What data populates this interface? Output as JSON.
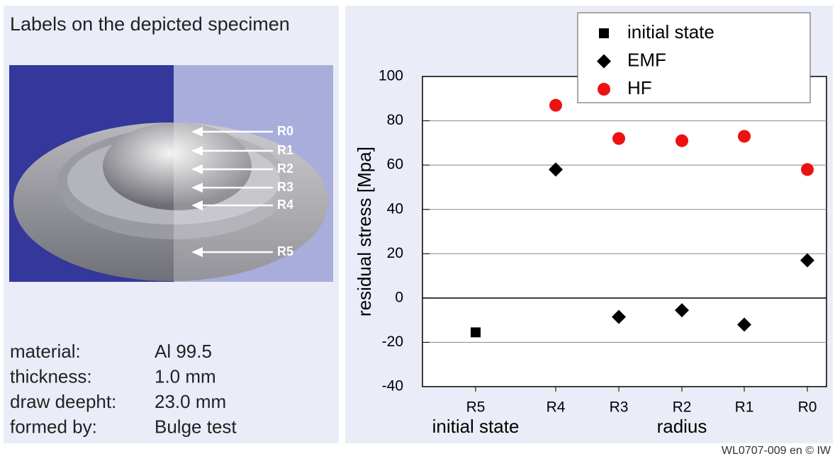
{
  "panel": {
    "title": "Labels on the depicted specimen",
    "photo_labels": [
      "R0",
      "R1",
      "R2",
      "R3",
      "R4",
      "R5"
    ],
    "specs": [
      [
        "material:",
        "Al 99.5"
      ],
      [
        "thickness:",
        "1.0 mm"
      ],
      [
        "draw deepht:",
        "23.0 mm"
      ],
      [
        "formed by:",
        "Bulge test"
      ]
    ]
  },
  "chart_data": {
    "type": "scatter",
    "y_label": "residual stress [Mpa]",
    "x_labels": [
      "initial state",
      "radius"
    ],
    "categories": [
      "R5",
      "R4",
      "R3",
      "R2",
      "R1",
      "R0"
    ],
    "series": [
      {
        "name": "initial state",
        "color": "#000000",
        "marker": "square",
        "values": [
          -15.5,
          null,
          null,
          null,
          null,
          null
        ]
      },
      {
        "name": "EMF",
        "color": "#000000",
        "marker": "diamond",
        "values": [
          null,
          58,
          -8.5,
          -5.5,
          -12,
          17
        ]
      },
      {
        "name": "HF",
        "color": "#ee1111",
        "marker": "circle",
        "values": [
          null,
          87,
          72,
          71,
          73,
          58
        ]
      }
    ],
    "ylim": [
      -40,
      100
    ],
    "yticks": [
      -40,
      -20,
      0,
      20,
      40,
      60,
      80,
      100
    ],
    "grid": true
  },
  "footer": "WL0707-009  en © IW"
}
